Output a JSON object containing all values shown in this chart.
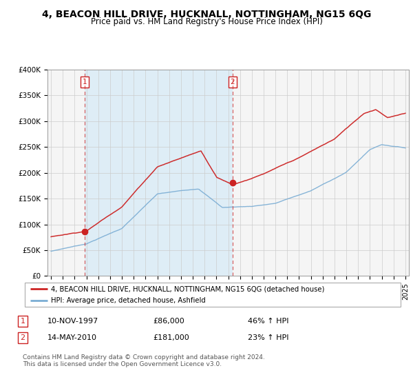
{
  "title": "4, BEACON HILL DRIVE, HUCKNALL, NOTTINGHAM, NG15 6QG",
  "subtitle": "Price paid vs. HM Land Registry's House Price Index (HPI)",
  "ylim": [
    0,
    400000
  ],
  "yticks": [
    0,
    50000,
    100000,
    150000,
    200000,
    250000,
    300000,
    350000,
    400000
  ],
  "ytick_labels": [
    "£0",
    "£50K",
    "£100K",
    "£150K",
    "£200K",
    "£250K",
    "£300K",
    "£350K",
    "£400K"
  ],
  "xlim_left": 1994.7,
  "xlim_right": 2025.3,
  "sale1_date_num": 1997.86,
  "sale1_price": 86000,
  "sale2_date_num": 2010.37,
  "sale2_price": 181000,
  "sale1_date_str": "10-NOV-1997",
  "sale1_price_str": "£86,000",
  "sale1_hpi_str": "46% ↑ HPI",
  "sale2_date_str": "14-MAY-2010",
  "sale2_price_str": "£181,000",
  "sale2_hpi_str": "23% ↑ HPI",
  "legend_line1": "4, BEACON HILL DRIVE, HUCKNALL, NOTTINGHAM, NG15 6QG (detached house)",
  "legend_line2": "HPI: Average price, detached house, Ashfield",
  "footer": "Contains HM Land Registry data © Crown copyright and database right 2024.\nThis data is licensed under the Open Government Licence v3.0.",
  "line_color_red": "#cc2222",
  "line_color_blue": "#7aadd4",
  "shade_color": "#d0e8f8",
  "bg_color": "#f5f5f5",
  "grid_color": "#cccccc"
}
